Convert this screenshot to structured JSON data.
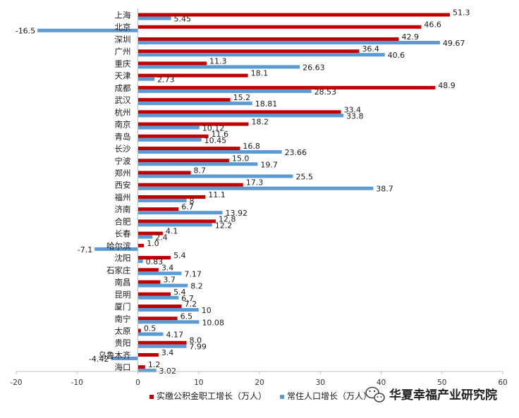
{
  "chart_data": {
    "type": "bar",
    "orientation": "horizontal",
    "categories": [
      "上海",
      "北京",
      "深圳",
      "广州",
      "重庆",
      "天津",
      "成都",
      "武汉",
      "杭州",
      "南京",
      "青岛",
      "长沙",
      "宁波",
      "郑州",
      "西安",
      "福州",
      "济南",
      "合肥",
      "长春",
      "哈尔滨",
      "沈阳",
      "石家庄",
      "南昌",
      "昆明",
      "厦门",
      "南宁",
      "太原",
      "贵阳",
      "乌鲁木齐",
      "海口"
    ],
    "series": [
      {
        "name": "实缴公积金职工增长（万人）",
        "color": "#c00000",
        "values": [
          51.3,
          46.6,
          42.9,
          36.4,
          11.3,
          18.1,
          48.9,
          15.2,
          33.4,
          18.2,
          11.6,
          16.8,
          15.0,
          8.7,
          17.3,
          11.1,
          6.7,
          12.8,
          4.1,
          1.0,
          5.4,
          3.4,
          3.7,
          5.4,
          7.2,
          6.5,
          0.5,
          8.0,
          3.4,
          1.2
        ],
        "labels": [
          "51.3",
          "46.6",
          "42.9",
          "36.4",
          "11.3",
          "18.1",
          "48.9",
          "15.2",
          "33.4",
          "18.2",
          "11.6",
          "16.8",
          "15.0",
          "8.7",
          "17.3",
          "11.1",
          "6.7",
          "12.8",
          "4.1",
          "1.0",
          "5.4",
          "3.4",
          "3.7",
          "5.4",
          "7.2",
          "6.5",
          "0.5",
          "8.0",
          "3.4",
          "1.2"
        ]
      },
      {
        "name": "常住人口增长（万人）",
        "color": "#5b9bd5",
        "values": [
          5.45,
          null,
          49.67,
          40.6,
          26.63,
          2.73,
          28.53,
          18.81,
          33.8,
          10.12,
          10.45,
          23.66,
          19.7,
          25.5,
          38.7,
          8,
          13.92,
          12.2,
          2.4,
          -7.1,
          0.83,
          7.17,
          8.2,
          6.7,
          10,
          10.08,
          4.17,
          7.99,
          -4.42,
          3.02
        ],
        "labels": [
          "5.45",
          "",
          "49.67",
          "40.6",
          "26.63",
          "2.73",
          "28.53",
          "18.81",
          "33.8",
          "10.12",
          "10.45",
          "23.66",
          "19.7",
          "25.5",
          "38.7",
          "8",
          "13.92",
          "12.2",
          "2.4",
          "-7.1",
          "0.83",
          "7.17",
          "8.2",
          "6.7",
          "10",
          "10.08",
          "4.17",
          "7.99",
          "-4.42",
          "3.02"
        ]
      }
    ],
    "beijing_population_value": -16.5,
    "beijing_population_label": "-16.5",
    "xlim": [
      -20,
      60
    ],
    "xticks": [
      -20,
      -10,
      0,
      10,
      20,
      30,
      40,
      50,
      60
    ],
    "xtick_labels": [
      "-20",
      "-10",
      "0",
      "10",
      "20",
      "30",
      "40",
      "50",
      "60"
    ],
    "grid": false,
    "legend_position": "bottom-center",
    "title": "",
    "xlabel": "",
    "ylabel": ""
  },
  "watermark": {
    "text": "华夏幸福产业研究院",
    "icon": "wechat-icon"
  }
}
